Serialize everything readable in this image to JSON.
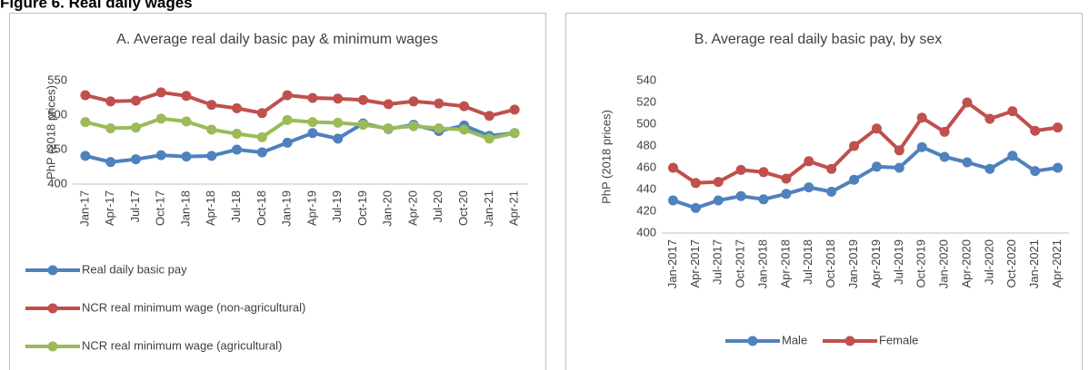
{
  "figure_title": "Figure 6. Real daily wages",
  "chart_data": [
    {
      "type": "line",
      "title": "A. Average real daily basic pay & minimum wages",
      "y_label": "PhP (2018 prices)",
      "categories": [
        "Jan-17",
        "Apr-17",
        "Jul-17",
        "Oct-17",
        "Jan-18",
        "Apr-18",
        "Jul-18",
        "Oct-18",
        "Jan-19",
        "Apr-19",
        "Jul-19",
        "Oct-19",
        "Jan-20",
        "Apr-20",
        "Jul-20",
        "Oct-20",
        "Jan-21",
        "Apr-21"
      ],
      "series": [
        {
          "name": "Real daily basic pay",
          "color": "#4f81bd",
          "values": [
            441,
            432,
            436,
            442,
            440,
            441,
            450,
            446,
            460,
            474,
            466,
            488,
            480,
            486,
            477,
            485,
            470,
            474
          ]
        },
        {
          "name": "NCR real minimum wage (non-agricultural)",
          "color": "#c0504d",
          "values": [
            529,
            520,
            521,
            533,
            528,
            515,
            510,
            503,
            529,
            525,
            524,
            522,
            516,
            520,
            517,
            513,
            499,
            508
          ]
        },
        {
          "name": "NCR real minimum wage (agricultural)",
          "color": "#9bbb59",
          "values": [
            490,
            481,
            482,
            495,
            491,
            479,
            473,
            468,
            493,
            490,
            489,
            486,
            481,
            484,
            481,
            479,
            466,
            474
          ]
        }
      ],
      "ylim": [
        400,
        550
      ],
      "yticks": [
        400,
        450,
        500,
        550
      ],
      "grid": false,
      "legend": "bottom"
    },
    {
      "type": "line",
      "title": "B. Average real daily basic pay, by sex",
      "y_label": "PhP (2018 prices)",
      "categories": [
        "Jan-2017",
        "Apr-2017",
        "Jul-2017",
        "Oct-2017",
        "Jan-2018",
        "Apr-2018",
        "Jul-2018",
        "Oct-2018",
        "Jan-2019",
        "Apr-2019",
        "Jul-2019",
        "Oct-2019",
        "Jan-2020",
        "Apr-2020",
        "Jul-2020",
        "Oct-2020",
        "Jan-2021",
        "Apr-2021"
      ],
      "series": [
        {
          "name": "Male",
          "color": "#4f81bd",
          "values": [
            430,
            423,
            430,
            434,
            431,
            436,
            442,
            438,
            449,
            461,
            460,
            479,
            470,
            465,
            459,
            471,
            457,
            460
          ]
        },
        {
          "name": "Female",
          "color": "#c0504d",
          "values": [
            460,
            446,
            447,
            458,
            456,
            450,
            466,
            459,
            480,
            496,
            476,
            506,
            493,
            520,
            505,
            512,
            494,
            497
          ]
        }
      ],
      "ylim": [
        400,
        540
      ],
      "yticks": [
        400,
        420,
        440,
        460,
        480,
        500,
        520,
        540
      ],
      "grid": false,
      "legend": "bottom"
    }
  ]
}
